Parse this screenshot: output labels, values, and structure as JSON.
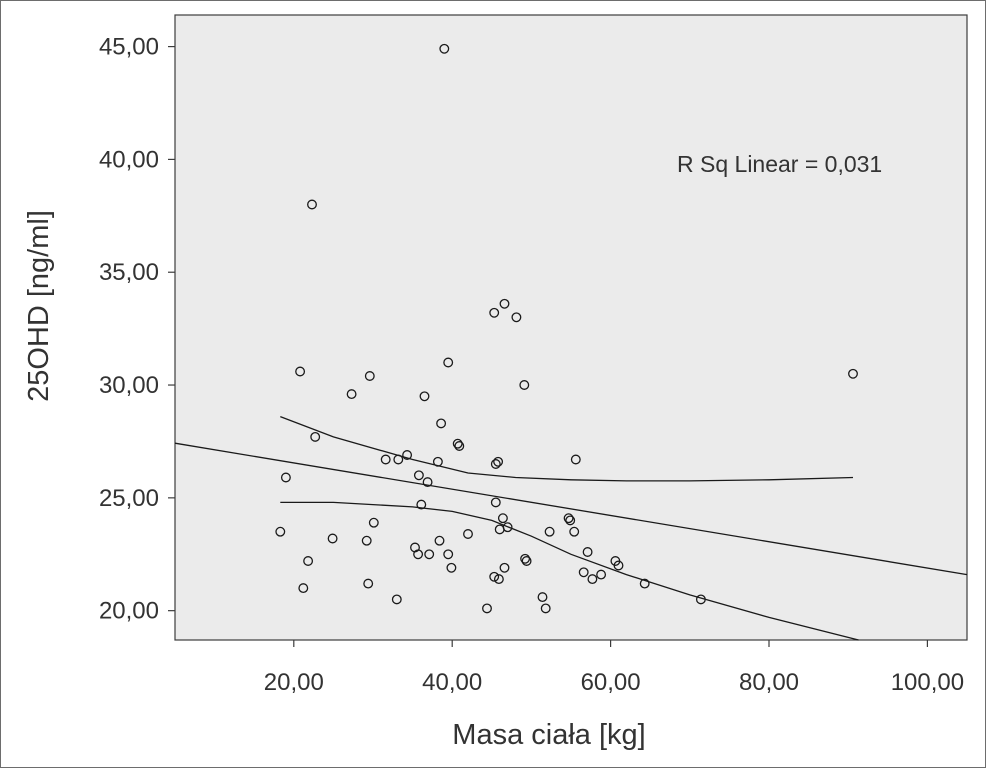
{
  "chart_data": {
    "type": "scatter",
    "title": "",
    "xlabel": "Masa ciała [kg]",
    "ylabel": "25OHD [ng/ml]",
    "xlim": [
      5,
      105
    ],
    "ylim": [
      18.7,
      46.4
    ],
    "x_ticks": [
      20,
      40,
      60,
      80,
      100
    ],
    "x_tick_labels": [
      "20,00",
      "40,00",
      "60,00",
      "80,00",
      "100,00"
    ],
    "y_ticks": [
      20,
      25,
      30,
      35,
      40,
      45
    ],
    "y_tick_labels": [
      "20,00",
      "25,00",
      "30,00",
      "35,00",
      "40,00",
      "45,00"
    ],
    "grid": false,
    "annotation": "R Sq Linear = 0,031",
    "colors": {
      "plot_background": "#ebebeb",
      "marker": "#1a1a1a",
      "line": "#1a1a1a"
    },
    "points": [
      {
        "x": 39.0,
        "y": 44.9
      },
      {
        "x": 22.3,
        "y": 38.0
      },
      {
        "x": 46.6,
        "y": 33.6
      },
      {
        "x": 45.3,
        "y": 33.2
      },
      {
        "x": 48.1,
        "y": 33.0
      },
      {
        "x": 39.5,
        "y": 31.0
      },
      {
        "x": 20.8,
        "y": 30.6
      },
      {
        "x": 90.6,
        "y": 30.5
      },
      {
        "x": 29.6,
        "y": 30.4
      },
      {
        "x": 49.1,
        "y": 30.0
      },
      {
        "x": 27.3,
        "y": 29.6
      },
      {
        "x": 36.5,
        "y": 29.5
      },
      {
        "x": 38.6,
        "y": 28.3
      },
      {
        "x": 22.7,
        "y": 27.7
      },
      {
        "x": 40.7,
        "y": 27.4
      },
      {
        "x": 40.9,
        "y": 27.3
      },
      {
        "x": 34.3,
        "y": 26.9
      },
      {
        "x": 33.2,
        "y": 26.7
      },
      {
        "x": 31.6,
        "y": 26.7
      },
      {
        "x": 38.2,
        "y": 26.6
      },
      {
        "x": 45.8,
        "y": 26.6
      },
      {
        "x": 45.5,
        "y": 26.5
      },
      {
        "x": 55.6,
        "y": 26.7
      },
      {
        "x": 35.8,
        "y": 26.0
      },
      {
        "x": 36.9,
        "y": 25.7
      },
      {
        "x": 19.0,
        "y": 25.9
      },
      {
        "x": 45.5,
        "y": 24.8
      },
      {
        "x": 36.1,
        "y": 24.7
      },
      {
        "x": 46.4,
        "y": 24.1
      },
      {
        "x": 54.7,
        "y": 24.1
      },
      {
        "x": 54.9,
        "y": 24.0
      },
      {
        "x": 30.1,
        "y": 23.9
      },
      {
        "x": 47.0,
        "y": 23.7
      },
      {
        "x": 46.0,
        "y": 23.6
      },
      {
        "x": 55.4,
        "y": 23.5
      },
      {
        "x": 18.3,
        "y": 23.5
      },
      {
        "x": 52.3,
        "y": 23.5
      },
      {
        "x": 42.0,
        "y": 23.4
      },
      {
        "x": 24.9,
        "y": 23.2
      },
      {
        "x": 29.2,
        "y": 23.1
      },
      {
        "x": 38.4,
        "y": 23.1
      },
      {
        "x": 35.3,
        "y": 22.8
      },
      {
        "x": 57.1,
        "y": 22.6
      },
      {
        "x": 39.5,
        "y": 22.5
      },
      {
        "x": 35.7,
        "y": 22.5
      },
      {
        "x": 37.1,
        "y": 22.5
      },
      {
        "x": 49.2,
        "y": 22.3
      },
      {
        "x": 49.4,
        "y": 22.2
      },
      {
        "x": 21.8,
        "y": 22.2
      },
      {
        "x": 60.6,
        "y": 22.2
      },
      {
        "x": 61.0,
        "y": 22.0
      },
      {
        "x": 39.9,
        "y": 21.9
      },
      {
        "x": 46.6,
        "y": 21.9
      },
      {
        "x": 56.6,
        "y": 21.7
      },
      {
        "x": 58.8,
        "y": 21.6
      },
      {
        "x": 45.3,
        "y": 21.5
      },
      {
        "x": 45.9,
        "y": 21.4
      },
      {
        "x": 57.7,
        "y": 21.4
      },
      {
        "x": 29.4,
        "y": 21.2
      },
      {
        "x": 64.3,
        "y": 21.2
      },
      {
        "x": 21.2,
        "y": 21.0
      },
      {
        "x": 51.4,
        "y": 20.6
      },
      {
        "x": 33.0,
        "y": 20.5
      },
      {
        "x": 71.4,
        "y": 20.5
      },
      {
        "x": 51.8,
        "y": 20.1
      },
      {
        "x": 44.4,
        "y": 20.1
      }
    ],
    "fit_line": {
      "name": "Linear",
      "x": [
        5,
        105
      ],
      "y": [
        27.42,
        21.6
      ]
    },
    "ci_upper": {
      "x": [
        18.3,
        25,
        35,
        42,
        48,
        55,
        62,
        70,
        80,
        90.6
      ],
      "y": [
        28.6,
        27.7,
        26.7,
        26.1,
        25.9,
        25.8,
        25.75,
        25.75,
        25.8,
        25.9
      ]
    },
    "ci_lower": {
      "x": [
        18.3,
        25,
        30,
        35,
        40,
        45,
        50,
        55,
        62,
        70,
        80,
        91.3
      ],
      "y": [
        24.8,
        24.8,
        24.7,
        24.6,
        24.4,
        24.0,
        23.3,
        22.5,
        21.6,
        20.7,
        19.7,
        18.7
      ]
    }
  }
}
